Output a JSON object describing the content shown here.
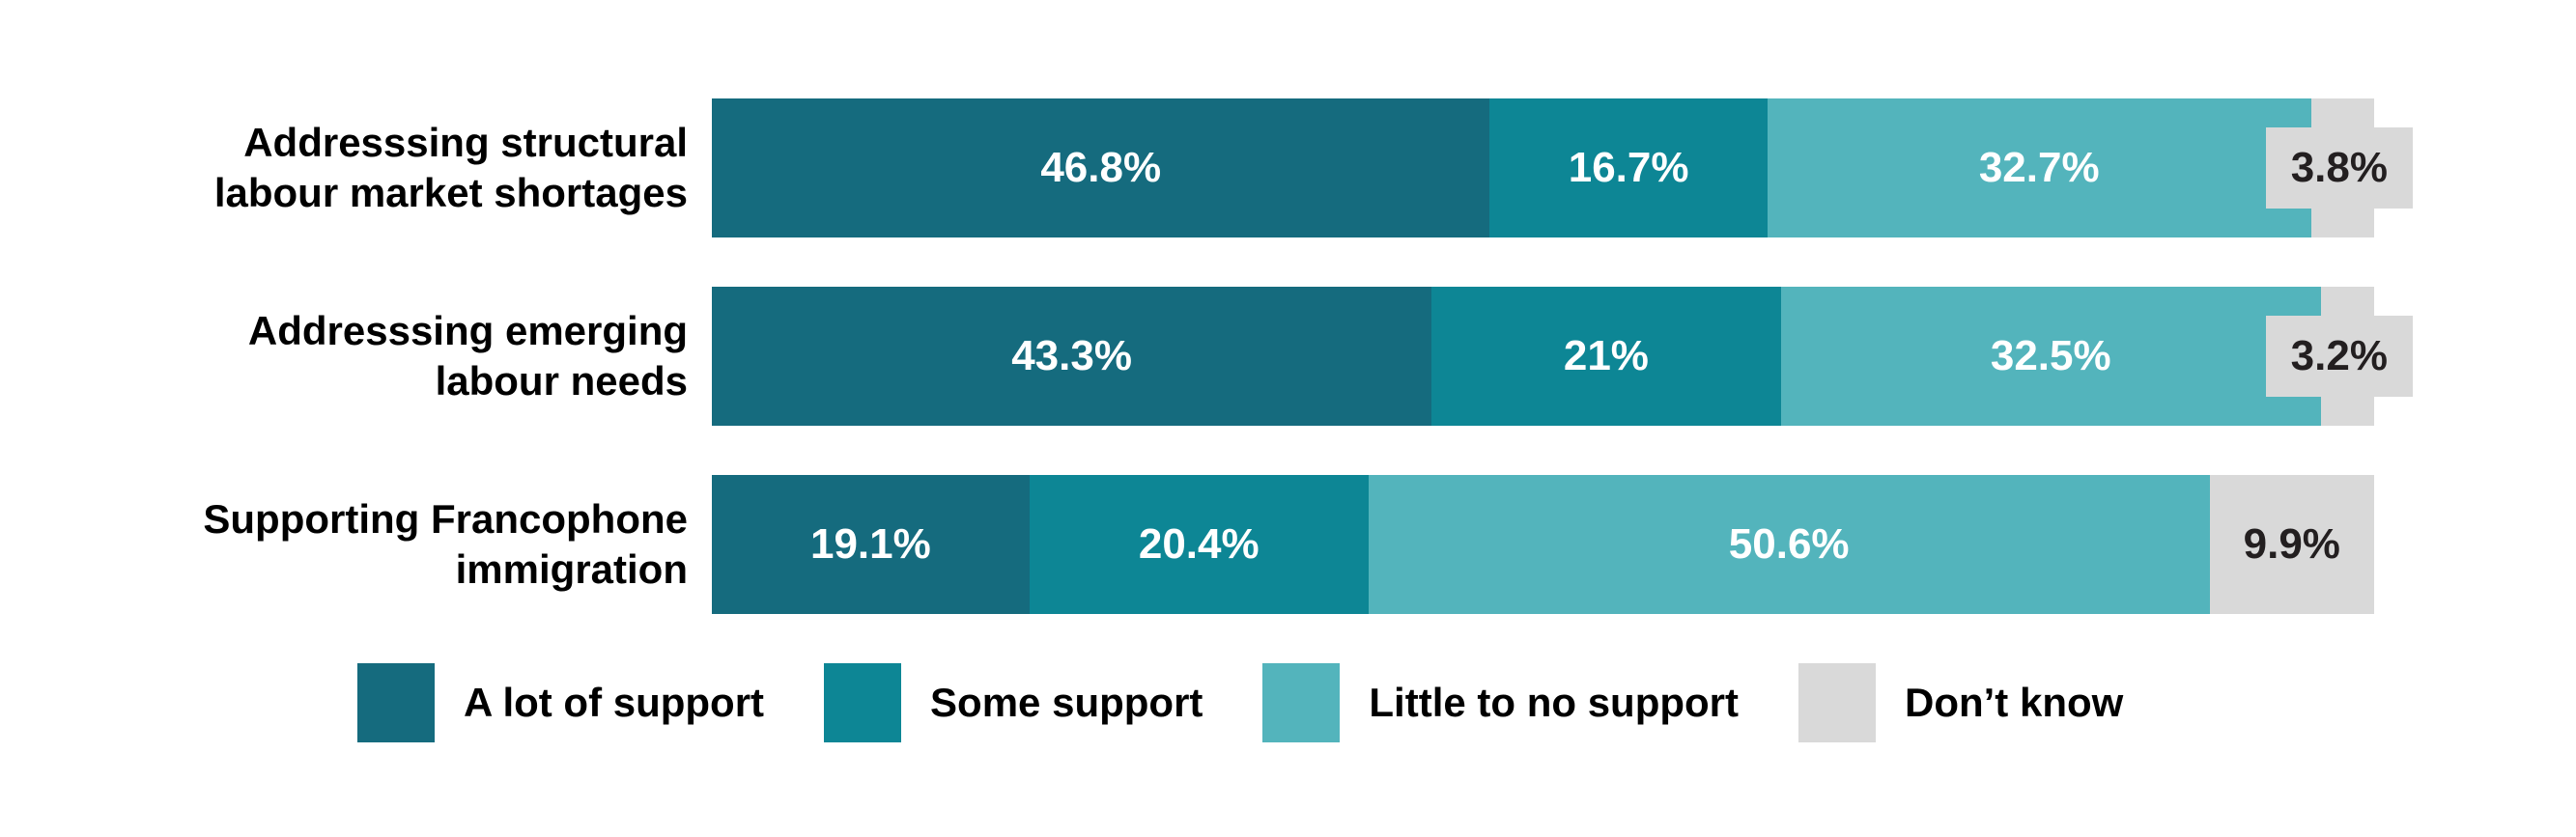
{
  "chart_data": {
    "type": "bar",
    "orientation": "horizontal",
    "stacked": true,
    "unit": "percent",
    "xlim": [
      0,
      100
    ],
    "grid": false,
    "legend_position": "bottom",
    "categories": [
      "Addresssing structural\nlabour market shortages",
      "Addresssing emerging\nlabour needs",
      "Supporting Francophone\nimmigration"
    ],
    "series": [
      {
        "name": "A lot of support",
        "color": "#156b7e",
        "values": [
          46.8,
          43.3,
          19.1
        ]
      },
      {
        "name": "Some support",
        "color": "#0d8695",
        "values": [
          16.7,
          21,
          20.4
        ]
      },
      {
        "name": "Little to no support",
        "color": "#53b4bc",
        "values": [
          32.7,
          32.5,
          50.6
        ]
      },
      {
        "name": "Don’t know",
        "color": "#d9d9d9",
        "values": [
          3.8,
          3.2,
          9.9
        ]
      }
    ],
    "display_labels": [
      [
        "46.8%",
        "16.7%",
        "32.7%",
        "3.8%"
      ],
      [
        "43.3%",
        "21%",
        "32.5%",
        "3.2%"
      ],
      [
        "19.1%",
        "20.4%",
        "50.6%",
        "9.9%"
      ]
    ]
  },
  "colors": {
    "background": "#ffffff",
    "category_text": "#000000",
    "value_text_light": "#ffffff",
    "value_text_dark": "#231f20"
  }
}
